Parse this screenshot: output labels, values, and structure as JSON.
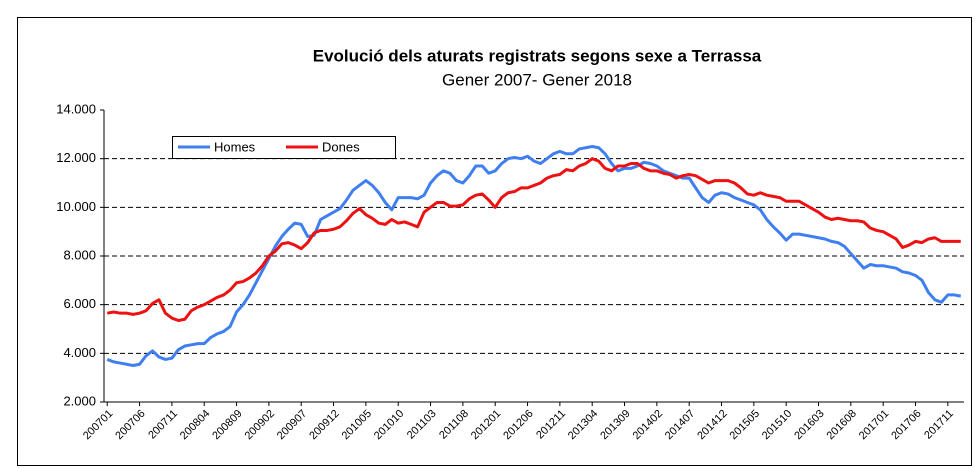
{
  "chart_data": {
    "type": "line",
    "title": "Evolució dels aturats registrats segons sexe a Terrassa",
    "subtitle": "Gener 2007- Gener 2018",
    "categories": [
      "200701",
      null,
      null,
      null,
      null,
      "200706",
      null,
      null,
      null,
      null,
      "200711",
      null,
      null,
      null,
      null,
      "200804",
      null,
      null,
      null,
      null,
      "200809",
      null,
      null,
      null,
      null,
      "200902",
      null,
      null,
      null,
      null,
      "200907",
      null,
      null,
      null,
      null,
      "200912",
      null,
      null,
      null,
      null,
      "201005",
      null,
      null,
      null,
      null,
      "201010",
      null,
      null,
      null,
      null,
      "201103",
      null,
      null,
      null,
      null,
      "201108",
      null,
      null,
      null,
      null,
      "201201",
      null,
      null,
      null,
      null,
      "201206",
      null,
      null,
      null,
      null,
      "201211",
      null,
      null,
      null,
      null,
      "201304",
      null,
      null,
      null,
      null,
      "201309",
      null,
      null,
      null,
      null,
      "201402",
      null,
      null,
      null,
      null,
      "201407",
      null,
      null,
      null,
      null,
      "201412",
      null,
      null,
      null,
      null,
      "201505",
      null,
      null,
      null,
      null,
      "201510",
      null,
      null,
      null,
      null,
      "201603",
      null,
      null,
      null,
      null,
      "201608",
      null,
      null,
      null,
      null,
      "201701",
      null,
      null,
      null,
      null,
      "201706",
      null,
      null,
      null,
      null,
      "201711",
      null,
      null
    ],
    "series": [
      {
        "name": "Homes",
        "color": "#3f7fef",
        "values": [
          3750,
          3650,
          3600,
          3550,
          3500,
          3550,
          3900,
          4100,
          3850,
          3750,
          3800,
          4150,
          4300,
          4350,
          4400,
          4400,
          4650,
          4800,
          4900,
          5100,
          5700,
          6000,
          6400,
          6900,
          7400,
          7900,
          8400,
          8800,
          9100,
          9350,
          9300,
          8800,
          8850,
          9500,
          9650,
          9800,
          9950,
          10300,
          10700,
          10900,
          11100,
          10900,
          10600,
          10200,
          9900,
          10400,
          10400,
          10400,
          10350,
          10500,
          11000,
          11300,
          11500,
          11400,
          11100,
          11000,
          11300,
          11700,
          11700,
          11400,
          11500,
          11800,
          12000,
          12050,
          12000,
          12100,
          11900,
          11800,
          12000,
          12200,
          12300,
          12200,
          12200,
          12400,
          12450,
          12500,
          12450,
          12200,
          11800,
          11500,
          11600,
          11600,
          11700,
          11850,
          11800,
          11700,
          11500,
          11400,
          11300,
          11200,
          11200,
          10800,
          10400,
          10200,
          10500,
          10600,
          10550,
          10400,
          10300,
          10200,
          10100,
          9900,
          9500,
          9200,
          8950,
          8650,
          8900,
          8900,
          8850,
          8800,
          8750,
          8700,
          8600,
          8550,
          8400,
          8100,
          7800,
          7500,
          7650,
          7600,
          7600,
          7550,
          7500,
          7350,
          7300,
          7200,
          7000,
          6500,
          6200,
          6100,
          6400,
          6400,
          6350
        ]
      },
      {
        "name": "Dones",
        "color": "#ee1111",
        "values": [
          5650,
          5700,
          5650,
          5650,
          5600,
          5650,
          5750,
          6050,
          6200,
          5650,
          5450,
          5350,
          5400,
          5750,
          5900,
          6000,
          6150,
          6300,
          6400,
          6600,
          6900,
          6950,
          7100,
          7300,
          7600,
          8000,
          8200,
          8500,
          8550,
          8450,
          8300,
          8550,
          8950,
          9050,
          9050,
          9100,
          9200,
          9450,
          9750,
          9950,
          9700,
          9550,
          9350,
          9300,
          9500,
          9350,
          9400,
          9300,
          9200,
          9800,
          10000,
          10200,
          10200,
          10050,
          10050,
          10100,
          10350,
          10500,
          10550,
          10300,
          10000,
          10400,
          10600,
          10650,
          10800,
          10800,
          10900,
          11000,
          11200,
          11300,
          11350,
          11550,
          11500,
          11700,
          11800,
          12000,
          11900,
          11600,
          11500,
          11700,
          11700,
          11800,
          11800,
          11600,
          11500,
          11500,
          11400,
          11350,
          11200,
          11300,
          11350,
          11300,
          11150,
          11000,
          11100,
          11100,
          11100,
          11000,
          10800,
          10550,
          10500,
          10600,
          10500,
          10450,
          10400,
          10250,
          10250,
          10250,
          10100,
          9950,
          9800,
          9600,
          9500,
          9550,
          9500,
          9450,
          9450,
          9400,
          9150,
          9050,
          9000,
          8850,
          8700,
          8350,
          8450,
          8600,
          8550,
          8700,
          8750,
          8600,
          8600,
          8600,
          8600
        ]
      }
    ],
    "ylim": [
      2000,
      14000
    ],
    "yticks": [
      {
        "value": 2000,
        "label": "2.000"
      },
      {
        "value": 4000,
        "label": "4.000"
      },
      {
        "value": 6000,
        "label": "6.000"
      },
      {
        "value": 8000,
        "label": "8.000"
      },
      {
        "value": 10000,
        "label": "10.000"
      },
      {
        "value": 12000,
        "label": "12.000"
      },
      {
        "value": 14000,
        "label": "14.000"
      }
    ],
    "grid": true,
    "legend": "top-left"
  }
}
